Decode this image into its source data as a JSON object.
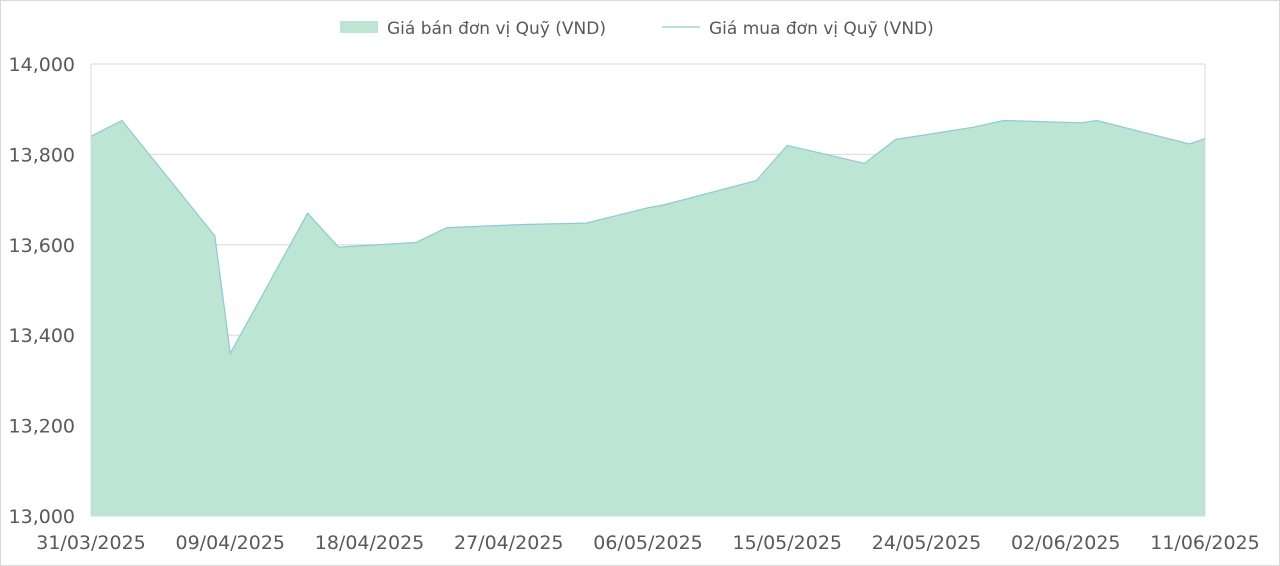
{
  "chart_data": {
    "type": "area",
    "title": "",
    "xlabel": "",
    "ylabel": "",
    "ylim": [
      13000,
      14000
    ],
    "y_ticks": [
      "13,000",
      "13,200",
      "13,400",
      "13,600",
      "13,800",
      "14,000"
    ],
    "x_tick_labels": [
      "31/03/2025",
      "09/04/2025",
      "18/04/2025",
      "27/04/2025",
      "06/05/2025",
      "15/05/2025",
      "24/05/2025",
      "02/06/2025",
      "11/06/2025"
    ],
    "x_range": [
      "2025-03-31",
      "2025-06-11"
    ],
    "grid": "horizontal",
    "legend_position": "top-center",
    "series": [
      {
        "name": "Giá bán đơn vị Quỹ (VND)",
        "kind": "area",
        "color": "#bce5d3",
        "points": [
          [
            "2025-03-31",
            13840
          ],
          [
            "2025-04-02",
            13875
          ],
          [
            "2025-04-08",
            13620
          ],
          [
            "2025-04-09",
            13360
          ],
          [
            "2025-04-14",
            13670
          ],
          [
            "2025-04-16",
            13595
          ],
          [
            "2025-04-21",
            13605
          ],
          [
            "2025-04-23",
            13638
          ],
          [
            "2025-04-28",
            13645
          ],
          [
            "2025-05-02",
            13648
          ],
          [
            "2025-05-06",
            13682
          ],
          [
            "2025-05-07",
            13688
          ],
          [
            "2025-05-13",
            13742
          ],
          [
            "2025-05-15",
            13820
          ],
          [
            "2025-05-20",
            13780
          ],
          [
            "2025-05-22",
            13833
          ],
          [
            "2025-05-27",
            13860
          ],
          [
            "2025-05-29",
            13875
          ],
          [
            "2025-06-03",
            13870
          ],
          [
            "2025-06-04",
            13875
          ],
          [
            "2025-06-10",
            13823
          ],
          [
            "2025-06-12",
            13847
          ]
        ]
      },
      {
        "name": "Giá mua đơn vị Quỹ (VND)",
        "kind": "line",
        "color": "#8fc9d6",
        "points": [
          [
            "2025-03-31",
            13840
          ],
          [
            "2025-04-02",
            13875
          ],
          [
            "2025-04-08",
            13620
          ],
          [
            "2025-04-09",
            13360
          ],
          [
            "2025-04-14",
            13670
          ],
          [
            "2025-04-16",
            13595
          ],
          [
            "2025-04-21",
            13605
          ],
          [
            "2025-04-23",
            13638
          ],
          [
            "2025-04-28",
            13645
          ],
          [
            "2025-05-02",
            13648
          ],
          [
            "2025-05-06",
            13682
          ],
          [
            "2025-05-07",
            13688
          ],
          [
            "2025-05-13",
            13742
          ],
          [
            "2025-05-15",
            13820
          ],
          [
            "2025-05-20",
            13780
          ],
          [
            "2025-05-22",
            13833
          ],
          [
            "2025-05-27",
            13860
          ],
          [
            "2025-05-29",
            13875
          ],
          [
            "2025-06-03",
            13870
          ],
          [
            "2025-06-04",
            13875
          ],
          [
            "2025-06-10",
            13823
          ],
          [
            "2025-06-12",
            13847
          ]
        ]
      }
    ]
  }
}
